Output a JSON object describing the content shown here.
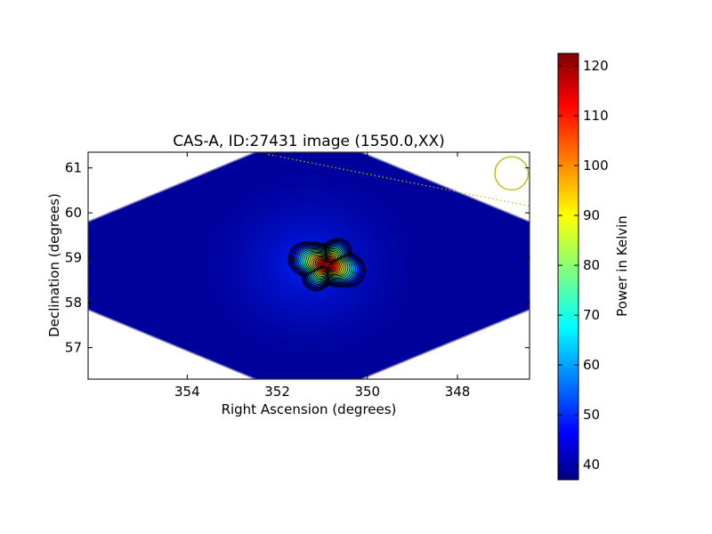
{
  "chart_data": {
    "type": "heatmap",
    "title": "CAS-A, ID:27431 image (1550.0,XX)",
    "xlabel": "Right Ascension (degrees)",
    "ylabel": "Declination (degrees)",
    "xlim": [
      356.2,
      346.4
    ],
    "ylim": [
      56.3,
      61.35
    ],
    "x_ticks": [
      354,
      352,
      350,
      348
    ],
    "y_ticks": [
      57,
      58,
      59,
      60,
      61
    ],
    "x_tick_labels": [
      "354",
      "352",
      "350",
      "348"
    ],
    "y_tick_labels": [
      "57",
      "58",
      "59",
      "60",
      "61"
    ],
    "colormap": "jet",
    "colorbar": {
      "label": "Power in Kelvin",
      "range": [
        37,
        122.5
      ],
      "ticks": [
        40,
        50,
        60,
        70,
        80,
        90,
        100,
        110,
        120
      ],
      "tick_labels": [
        "40",
        "50",
        "60",
        "70",
        "80",
        "90",
        "100",
        "110",
        "120"
      ]
    },
    "image_background_K": 40,
    "source": {
      "ra_center": 350.9,
      "dec_center": 58.85,
      "peak_K": 121,
      "lobe_axis_1": [
        [
          351.6,
          59.02
        ],
        [
          350.4,
          58.7
        ]
      ],
      "lobe_axis_2": [
        [
          350.6,
          59.18
        ],
        [
          351.2,
          58.48
        ]
      ]
    },
    "contour_count": 18,
    "beam_circle": {
      "ra": 346.8,
      "dec": 60.88,
      "radius_deg": 0.37,
      "color": "#b8b800"
    },
    "dotted_line": {
      "from": [
        352.2,
        61.3
      ],
      "to": [
        346.4,
        60.15
      ],
      "color": "#b8b800"
    },
    "grid": false
  }
}
